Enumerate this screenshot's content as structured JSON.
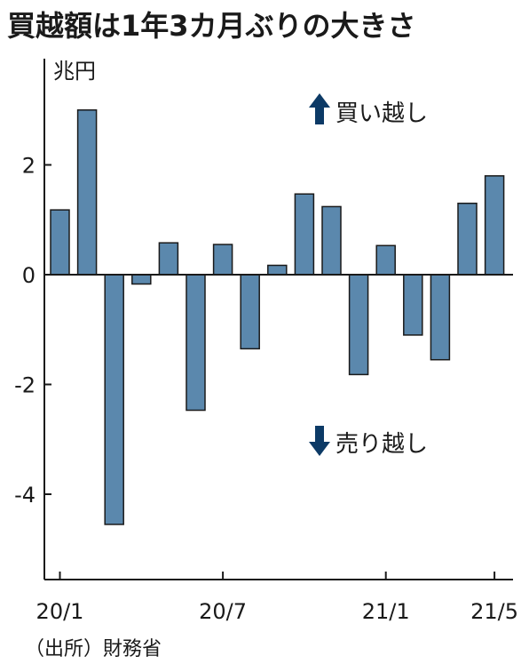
{
  "title": "買越額は1年3カ月ぶりの大きさ",
  "source": "（出所）財務省",
  "annotations": {
    "buy": "買い越し",
    "sell": "売り越し",
    "arrow_color": "#0c3a66"
  },
  "colors": {
    "bar_fill": "#5b88ad",
    "bar_stroke": "#1a1a1a",
    "axis": "#1a1a1a"
  },
  "chart_data": {
    "type": "bar",
    "ylabel": "兆円",
    "ylim": [
      -5.5,
      4
    ],
    "yticks": [
      -4,
      -2,
      0,
      2
    ],
    "ytick_labels": [
      "-4",
      "-2",
      "0",
      "2"
    ],
    "xtick_labels": [
      {
        "index": 0,
        "label": "20/1"
      },
      {
        "index": 6,
        "label": "20/7"
      },
      {
        "index": 12,
        "label": "21/1"
      },
      {
        "index": 16,
        "label": "21/5"
      }
    ],
    "values": [
      1.18,
      3.0,
      -4.55,
      -0.17,
      0.58,
      -2.47,
      0.55,
      -1.35,
      0.17,
      1.47,
      1.24,
      -1.82,
      0.53,
      -1.1,
      -1.55,
      1.3,
      1.8
    ],
    "grid": false,
    "legend": "none"
  }
}
